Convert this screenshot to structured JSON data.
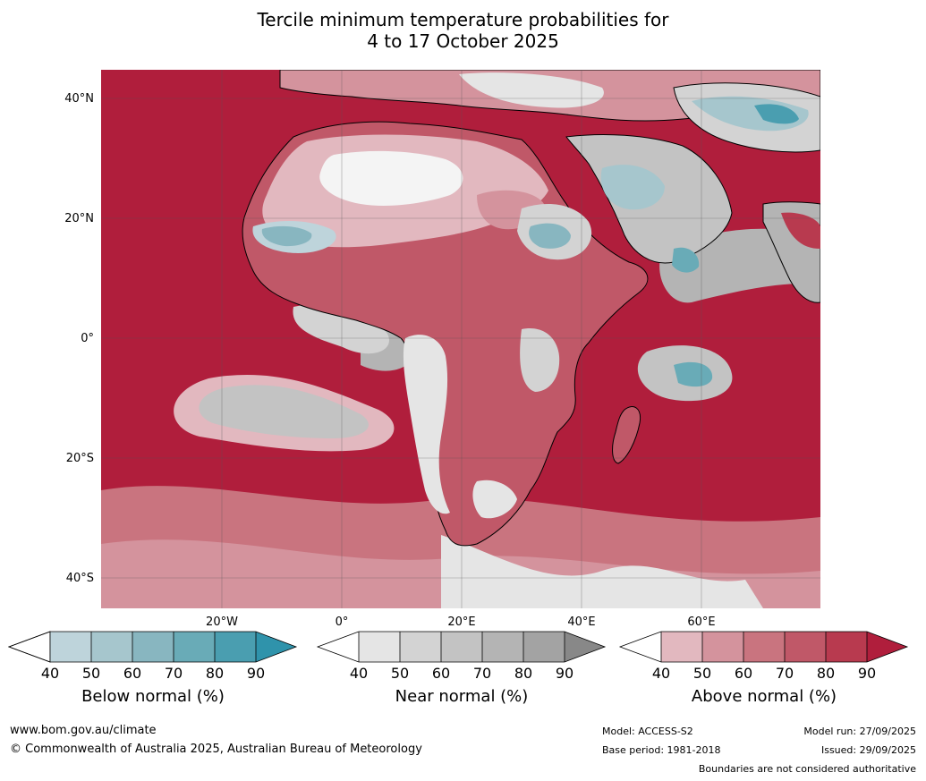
{
  "title_line1": "Tercile minimum temperature probabilities for",
  "title_line2": "4 to 17 October 2025",
  "map": {
    "lat_labels": [
      "40°N",
      "20°N",
      "0°",
      "20°S",
      "40°S"
    ],
    "lon_labels": [
      "20°W",
      "0°",
      "20°E",
      "40°E",
      "60°E"
    ]
  },
  "legends": [
    {
      "title": "Below normal (%)",
      "ticks": [
        "40",
        "50",
        "60",
        "70",
        "80",
        "90"
      ],
      "colors": [
        "#bed4db",
        "#a6c6cd",
        "#88b6c0",
        "#69abb7",
        "#4a9eb0",
        "#2f93ab"
      ]
    },
    {
      "title": "Near normal (%)",
      "ticks": [
        "40",
        "50",
        "60",
        "70",
        "80",
        "90"
      ],
      "colors": [
        "#e5e5e5",
        "#d3d3d3",
        "#c3c3c3",
        "#b4b4b4",
        "#a3a3a3",
        "#888888"
      ]
    },
    {
      "title": "Above normal (%)",
      "ticks": [
        "40",
        "50",
        "60",
        "70",
        "80",
        "90"
      ],
      "colors": [
        "#e2b8bf",
        "#d4939d",
        "#c9747f",
        "#c05868",
        "#b83a4f",
        "#b01e3c"
      ]
    }
  ],
  "footer": {
    "website": "www.bom.gov.au/climate",
    "copyright": "© Commonwealth of Australia 2025, Australian Bureau of Meteorology",
    "model": "Model: ACCESS-S2",
    "base_period": "Base period: 1981-2018",
    "model_run": "Model run: 27/09/2025",
    "issued": "Issued: 29/09/2025",
    "disclaimer": "Boundaries are not considered authoritative"
  }
}
